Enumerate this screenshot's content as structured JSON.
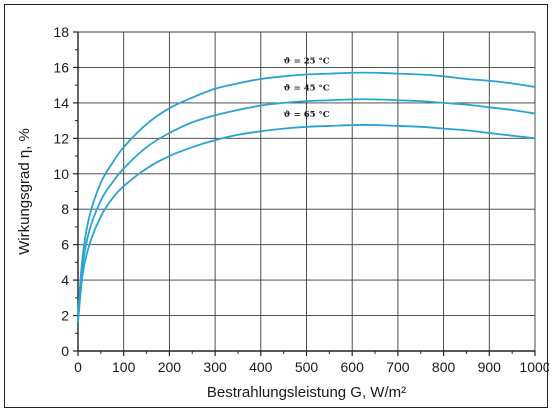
{
  "chart_data": {
    "type": "line",
    "title": "",
    "xlabel": "Bestrahlungsleistung G,  W/m²",
    "ylabel": "Wirkungsgrad η,  %",
    "xlim": [
      0,
      1000
    ],
    "ylim": [
      0,
      18
    ],
    "x_ticks": [
      0,
      100,
      200,
      300,
      400,
      500,
      600,
      700,
      800,
      900,
      1000
    ],
    "y_ticks": [
      0,
      2,
      4,
      6,
      8,
      10,
      12,
      14,
      16,
      18
    ],
    "grid": true,
    "line_color": "#2aa3d4",
    "series": [
      {
        "name": "ϑ = 25 °C",
        "x": [
          0,
          10,
          25,
          50,
          75,
          100,
          150,
          200,
          250,
          300,
          350,
          400,
          450,
          500,
          550,
          600,
          650,
          700,
          750,
          800,
          850,
          900,
          950,
          1000
        ],
        "y": [
          2.0,
          5.3,
          7.6,
          9.5,
          10.6,
          11.5,
          12.8,
          13.7,
          14.3,
          14.8,
          15.1,
          15.35,
          15.5,
          15.6,
          15.65,
          15.7,
          15.7,
          15.65,
          15.6,
          15.5,
          15.35,
          15.25,
          15.1,
          14.9
        ]
      },
      {
        "name": "ϑ = 45 °C",
        "x": [
          0,
          10,
          25,
          50,
          75,
          100,
          150,
          200,
          250,
          300,
          350,
          400,
          450,
          500,
          550,
          600,
          650,
          700,
          750,
          800,
          850,
          900,
          950,
          1000
        ],
        "y": [
          1.8,
          4.8,
          6.8,
          8.5,
          9.5,
          10.3,
          11.5,
          12.3,
          12.9,
          13.3,
          13.6,
          13.85,
          14.0,
          14.1,
          14.15,
          14.2,
          14.2,
          14.15,
          14.1,
          14.0,
          13.9,
          13.75,
          13.6,
          13.4
        ]
      },
      {
        "name": "ϑ = 65 °C",
        "x": [
          0,
          10,
          25,
          50,
          75,
          100,
          150,
          200,
          250,
          300,
          350,
          400,
          450,
          500,
          550,
          600,
          650,
          700,
          750,
          800,
          850,
          900,
          950,
          1000
        ],
        "y": [
          1.6,
          4.3,
          6.0,
          7.6,
          8.6,
          9.3,
          10.3,
          11.0,
          11.5,
          11.9,
          12.2,
          12.4,
          12.55,
          12.65,
          12.7,
          12.75,
          12.75,
          12.7,
          12.65,
          12.55,
          12.45,
          12.3,
          12.15,
          12.0
        ]
      }
    ],
    "annotations": [
      "ϑ = 25 °C",
      "ϑ = 45 °C",
      "ϑ = 65 °C"
    ]
  }
}
